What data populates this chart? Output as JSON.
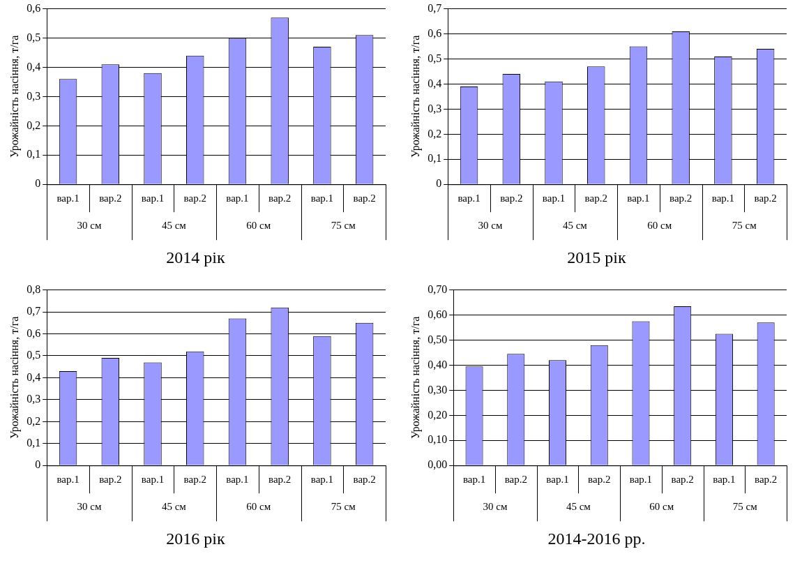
{
  "chart_data": [
    {
      "type": "bar",
      "title": "2014 рік",
      "ylabel": "Урожайність насіння, т/га",
      "categories": [
        "вар.1",
        "вар.2",
        "вар.1",
        "вар.2",
        "вар.1",
        "вар.2",
        "вар.1",
        "вар.2"
      ],
      "annotations": [
        "30 см",
        "45 см",
        "60 см",
        "75 см"
      ],
      "series": [
        {
          "color": "#9999ff",
          "values": [
            0.36,
            0.41,
            0.38,
            0.44,
            0.5,
            0.57,
            0.47,
            0.51
          ]
        }
      ],
      "ylim": [
        0,
        0.6
      ],
      "yticks": [
        {
          "value": 0,
          "label": "0"
        },
        {
          "value": 0.1,
          "label": "0,1"
        },
        {
          "value": 0.2,
          "label": "0,2"
        },
        {
          "value": 0.3,
          "label": "0,3"
        },
        {
          "value": 0.4,
          "label": "0,4"
        },
        {
          "value": 0.5,
          "label": "0,5"
        },
        {
          "value": 0.6,
          "label": "0,6"
        }
      ],
      "grid": "y"
    },
    {
      "type": "bar",
      "title": "2015 рік",
      "ylabel": "Урожайність насіння, т/га",
      "categories": [
        "вар.1",
        "вар.2",
        "вар.1",
        "вар.2",
        "вар.1",
        "вар.2",
        "вар.1",
        "вар.2"
      ],
      "annotations": [
        "30 см",
        "45 см",
        "60 см",
        "75 см"
      ],
      "series": [
        {
          "color": "#9999ff",
          "values": [
            0.39,
            0.44,
            0.41,
            0.47,
            0.55,
            0.61,
            0.51,
            0.54
          ]
        }
      ],
      "ylim": [
        0,
        0.7
      ],
      "yticks": [
        {
          "value": 0,
          "label": "0"
        },
        {
          "value": 0.1,
          "label": "0,1"
        },
        {
          "value": 0.2,
          "label": "0,2"
        },
        {
          "value": 0.3,
          "label": "0,3"
        },
        {
          "value": 0.4,
          "label": "0,4"
        },
        {
          "value": 0.5,
          "label": "0,5"
        },
        {
          "value": 0.6,
          "label": "0,6"
        },
        {
          "value": 0.7,
          "label": "0,7"
        }
      ],
      "grid": "y"
    },
    {
      "type": "bar",
      "title": "2016 рік",
      "ylabel": "Урожайність насіння, т/га",
      "categories": [
        "вар.1",
        "вар.2",
        "вар.1",
        "вар.2",
        "вар.1",
        "вар.2",
        "вар.1",
        "вар.2"
      ],
      "annotations": [
        "30 см",
        "45 см",
        "60 см",
        "75 см"
      ],
      "series": [
        {
          "color": "#9999ff",
          "values": [
            0.43,
            0.49,
            0.47,
            0.52,
            0.67,
            0.72,
            0.59,
            0.65
          ]
        }
      ],
      "ylim": [
        0,
        0.8
      ],
      "yticks": [
        {
          "value": 0,
          "label": "0"
        },
        {
          "value": 0.1,
          "label": "0,1"
        },
        {
          "value": 0.2,
          "label": "0,2"
        },
        {
          "value": 0.3,
          "label": "0,3"
        },
        {
          "value": 0.4,
          "label": "0,4"
        },
        {
          "value": 0.5,
          "label": "0,5"
        },
        {
          "value": 0.6,
          "label": "0,6"
        },
        {
          "value": 0.7,
          "label": "0,7"
        },
        {
          "value": 0.8,
          "label": "0,8"
        }
      ],
      "grid": "y"
    },
    {
      "type": "bar",
      "title": "2014-2016 рр.",
      "ylabel": "Урожайність насіння, т/га",
      "categories": [
        "вар.1",
        "вар.2",
        "вар.1",
        "вар.2",
        "вар.1",
        "вар.2",
        "вар.1",
        "вар.2"
      ],
      "annotations": [
        "30 см",
        "45 см",
        "60 см",
        "75 см"
      ],
      "series": [
        {
          "color": "#9999ff",
          "values": [
            0.395,
            0.445,
            0.42,
            0.48,
            0.575,
            0.635,
            0.525,
            0.57
          ]
        }
      ],
      "ylim": [
        0,
        0.7
      ],
      "yticks": [
        {
          "value": 0,
          "label": "0,00"
        },
        {
          "value": 0.1,
          "label": "0,10"
        },
        {
          "value": 0.2,
          "label": "0,20"
        },
        {
          "value": 0.3,
          "label": "0,30"
        },
        {
          "value": 0.4,
          "label": "0,40"
        },
        {
          "value": 0.5,
          "label": "0,50"
        },
        {
          "value": 0.6,
          "label": "0,60"
        },
        {
          "value": 0.7,
          "label": "0,70"
        }
      ],
      "grid": "y"
    }
  ]
}
